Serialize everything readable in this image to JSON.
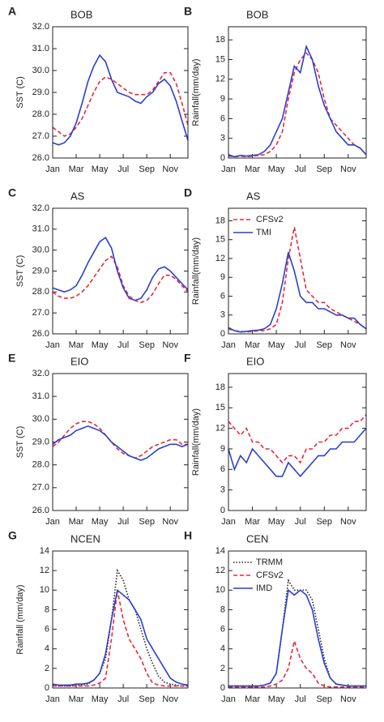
{
  "chart_data": [
    {
      "type": "line",
      "label": "A",
      "title": "BOB",
      "ylabel": "SST (C)",
      "categories": [
        "Jan",
        null,
        null,
        null,
        "Mar",
        null,
        null,
        null,
        "May",
        null,
        null,
        null,
        "Jul",
        null,
        null,
        null,
        "Sep",
        null,
        null,
        null,
        "Nov",
        null,
        null,
        null
      ],
      "ylim": [
        26,
        32
      ],
      "yticks": [
        {
          "value": 26,
          "label": "26.0"
        },
        {
          "value": 27,
          "label": "27.0"
        },
        {
          "value": 28,
          "label": "28.0"
        },
        {
          "value": 29,
          "label": "29.0"
        },
        {
          "value": 30,
          "label": "30.0"
        },
        {
          "value": 31,
          "label": "31.0"
        },
        {
          "value": 32,
          "label": "32.0"
        }
      ],
      "series": [
        {
          "color": "#e8283c",
          "style": "dashed",
          "values": [
            27.4,
            27.2,
            27.0,
            27.1,
            27.4,
            27.8,
            28.4,
            29.0,
            29.5,
            29.7,
            29.6,
            29.4,
            29.2,
            29.0,
            28.9,
            28.9,
            28.9,
            29.1,
            29.5,
            29.9,
            29.9,
            29.4,
            28.5,
            27.5
          ]
        },
        {
          "color": "#2c3fd0",
          "style": "solid",
          "values": [
            26.7,
            26.6,
            26.7,
            27.0,
            27.6,
            28.5,
            29.5,
            30.2,
            30.7,
            30.4,
            29.6,
            29.0,
            28.9,
            28.8,
            28.6,
            28.5,
            28.8,
            29.0,
            29.4,
            29.6,
            29.3,
            28.6,
            27.7,
            26.8
          ]
        }
      ]
    },
    {
      "type": "line",
      "label": "B",
      "title": "BOB",
      "ylabel": "Rainfall(mm/day)",
      "categories": [
        "Jan",
        null,
        null,
        null,
        "Mar",
        null,
        null,
        null,
        "May",
        null,
        null,
        null,
        "Jul",
        null,
        null,
        null,
        "Sep",
        null,
        null,
        null,
        "Nov",
        null,
        null,
        null
      ],
      "ylim": [
        0,
        20
      ],
      "yticks": [
        0,
        3,
        6,
        9,
        12,
        15,
        18
      ],
      "series": [
        {
          "color": "#e8283c",
          "style": "dashed",
          "values": [
            0.3,
            0.2,
            0.3,
            0.2,
            0.3,
            0.4,
            0.5,
            1,
            2,
            4,
            9,
            13,
            15,
            16,
            15,
            13,
            9,
            6,
            5,
            4,
            3,
            2,
            1.5,
            0.5
          ]
        },
        {
          "color": "#2c3fd0",
          "style": "solid",
          "values": [
            0.5,
            0.2,
            0.4,
            0.3,
            0.4,
            0.5,
            1,
            2,
            4,
            6,
            10,
            14,
            13,
            17,
            15,
            11,
            8,
            6,
            4,
            3,
            2,
            2,
            1.5,
            0.5
          ]
        }
      ]
    },
    {
      "type": "line",
      "label": "C",
      "title": "AS",
      "ylabel": "SST (C)",
      "categories": [
        "Jan",
        null,
        null,
        null,
        "Mar",
        null,
        null,
        null,
        "May",
        null,
        null,
        null,
        "Jul",
        null,
        null,
        null,
        "Sep",
        null,
        null,
        null,
        "Nov",
        null,
        null,
        null
      ],
      "ylim": [
        26,
        32
      ],
      "yticks": [
        {
          "value": 26,
          "label": "26.0"
        },
        {
          "value": 27,
          "label": "27.0"
        },
        {
          "value": 28,
          "label": "28.0"
        },
        {
          "value": 29,
          "label": "29.0"
        },
        {
          "value": 30,
          "label": "30.0"
        },
        {
          "value": 31,
          "label": "31.0"
        },
        {
          "value": 32,
          "label": "32.0"
        }
      ],
      "series": [
        {
          "color": "#e8283c",
          "style": "dashed",
          "values": [
            28.0,
            27.8,
            27.7,
            27.7,
            27.8,
            28.0,
            28.3,
            28.7,
            29.1,
            29.5,
            29.7,
            29.2,
            28.3,
            27.8,
            27.6,
            27.5,
            27.6,
            27.9,
            28.4,
            28.8,
            28.8,
            28.6,
            28.3,
            28.0
          ]
        },
        {
          "color": "#2c3fd0",
          "style": "solid",
          "values": [
            28.2,
            28.1,
            28.0,
            28.1,
            28.3,
            28.8,
            29.4,
            29.9,
            30.4,
            30.6,
            30.1,
            29.0,
            28.2,
            27.7,
            27.6,
            27.7,
            28.1,
            28.7,
            29.1,
            29.2,
            29.0,
            28.7,
            28.4,
            28.1
          ]
        }
      ]
    },
    {
      "type": "line",
      "label": "D",
      "title": "AS",
      "ylabel": "Rainfall(mm/day)",
      "legend": "upper left",
      "categories": [
        "Jan",
        null,
        null,
        null,
        "Mar",
        null,
        null,
        null,
        "May",
        null,
        null,
        null,
        "Jul",
        null,
        null,
        null,
        "Sep",
        null,
        null,
        null,
        "Nov",
        null,
        null,
        null
      ],
      "ylim": [
        0,
        20
      ],
      "yticks": [
        0,
        3,
        6,
        9,
        12,
        15,
        18
      ],
      "series": [
        {
          "name": "CFSv2",
          "color": "#e8283c",
          "style": "dashed",
          "values": [
            0.8,
            0.5,
            0.4,
            0.3,
            0.4,
            0.5,
            0.5,
            0.8,
            1.5,
            5,
            12,
            17,
            12,
            7,
            6,
            5,
            5,
            4,
            3.5,
            3,
            2.5,
            2,
            1.5,
            0.8
          ]
        },
        {
          "name": "TMI",
          "color": "#2c3fd0",
          "style": "solid",
          "values": [
            1.0,
            0.5,
            0.3,
            0.4,
            0.5,
            0.6,
            0.8,
            1.5,
            4,
            8,
            13,
            10,
            6,
            5,
            5,
            4,
            4,
            3.5,
            3,
            3,
            2.5,
            2.5,
            1.5,
            0.8
          ]
        }
      ]
    },
    {
      "type": "line",
      "label": "E",
      "title": "EIO",
      "ylabel": "SST (C)",
      "categories": [
        "Jan",
        null,
        null,
        null,
        "Mar",
        null,
        null,
        null,
        "May",
        null,
        null,
        null,
        "Jul",
        null,
        null,
        null,
        "Sep",
        null,
        null,
        null,
        "Nov",
        null,
        null,
        null
      ],
      "ylim": [
        26,
        32
      ],
      "yticks": [
        {
          "value": 26,
          "label": "26.0"
        },
        {
          "value": 27,
          "label": "27.0"
        },
        {
          "value": 28,
          "label": "28.0"
        },
        {
          "value": 29,
          "label": "29.0"
        },
        {
          "value": 30,
          "label": "30.0"
        },
        {
          "value": 31,
          "label": "31.0"
        },
        {
          "value": 32,
          "label": "32.0"
        }
      ],
      "series": [
        {
          "color": "#e8283c",
          "style": "dashed",
          "values": [
            28.8,
            29.0,
            29.3,
            29.6,
            29.8,
            29.9,
            29.9,
            29.8,
            29.6,
            29.3,
            29.0,
            28.7,
            28.5,
            28.4,
            28.3,
            28.4,
            28.6,
            28.8,
            28.9,
            29.0,
            29.1,
            29.1,
            28.9,
            28.9
          ]
        },
        {
          "color": "#2c3fd0",
          "style": "solid",
          "values": [
            28.9,
            29.1,
            29.2,
            29.3,
            29.5,
            29.6,
            29.7,
            29.6,
            29.5,
            29.3,
            29.0,
            28.8,
            28.6,
            28.4,
            28.3,
            28.2,
            28.3,
            28.5,
            28.7,
            28.8,
            28.9,
            28.9,
            28.8,
            28.9
          ]
        }
      ]
    },
    {
      "type": "line",
      "label": "F",
      "title": "EIO",
      "ylabel": "Rainfall(mm/day)",
      "categories": [
        "Jan",
        null,
        null,
        null,
        "Mar",
        null,
        null,
        null,
        "May",
        null,
        null,
        null,
        "Jul",
        null,
        null,
        null,
        "Sep",
        null,
        null,
        null,
        "Nov",
        null,
        null,
        null
      ],
      "ylim": [
        0,
        20
      ],
      "yticks": [
        0,
        3,
        6,
        9,
        12,
        15,
        18
      ],
      "series": [
        {
          "color": "#e8283c",
          "style": "dashed",
          "values": [
            13,
            12,
            11,
            12,
            10,
            10,
            9,
            9,
            8,
            7,
            8,
            8,
            7,
            9,
            9,
            10,
            10,
            11,
            11,
            12,
            12,
            13,
            13,
            14
          ]
        },
        {
          "color": "#2c3fd0",
          "style": "solid",
          "values": [
            9,
            6,
            8,
            7,
            9,
            8,
            7,
            6,
            5,
            5,
            7,
            6,
            5,
            6,
            7,
            8,
            8,
            9,
            9,
            10,
            10,
            10,
            11,
            12
          ]
        }
      ]
    },
    {
      "type": "line",
      "label": "G",
      "title": "NCEN",
      "ylabel": "Rainfall (mm/day)",
      "categories": [
        "Jan",
        null,
        null,
        null,
        "Mar",
        null,
        null,
        null,
        "May",
        null,
        null,
        null,
        "Jul",
        null,
        null,
        null,
        "Sep",
        null,
        null,
        null,
        "Nov",
        null,
        null,
        null
      ],
      "ylim": [
        0,
        14
      ],
      "yticks": [
        0,
        2,
        4,
        6,
        8,
        10,
        12,
        14
      ],
      "series": [
        {
          "color": "#222222",
          "style": "dotted",
          "values": [
            0.3,
            0.2,
            0.2,
            0.2,
            0.3,
            0.3,
            0.4,
            0.8,
            1.5,
            3,
            7,
            12,
            11,
            9,
            8,
            6,
            4,
            2.5,
            1.2,
            0.6,
            0.4,
            0.3,
            0.2,
            0.2
          ]
        },
        {
          "color": "#e8283c",
          "style": "dashed",
          "values": [
            0.2,
            0.2,
            0.2,
            0.2,
            0.2,
            0.2,
            0.2,
            0.3,
            0.5,
            1,
            5,
            10,
            7,
            5,
            4,
            3,
            1.5,
            0.5,
            0.3,
            0.2,
            0.2,
            0.2,
            0.2,
            0.2
          ]
        },
        {
          "color": "#2c3fd0",
          "style": "solid",
          "values": [
            0.4,
            0.3,
            0.3,
            0.3,
            0.4,
            0.4,
            0.5,
            0.8,
            1.5,
            3.5,
            7,
            10,
            9.5,
            9,
            8,
            7,
            5,
            4,
            3,
            2,
            1,
            0.6,
            0.4,
            0.3
          ]
        }
      ]
    },
    {
      "type": "line",
      "label": "H",
      "title": "CEN",
      "legend": "upper left",
      "categories": [
        "Jan",
        null,
        null,
        null,
        "Mar",
        null,
        null,
        null,
        "May",
        null,
        null,
        null,
        "Jul",
        null,
        null,
        null,
        "Sep",
        null,
        null,
        null,
        "Nov",
        null,
        null,
        null
      ],
      "ylim": [
        0,
        14
      ],
      "yticks": [
        0,
        2,
        4,
        6,
        8,
        10,
        12,
        14
      ],
      "series": [
        {
          "name": "TRMM",
          "color": "#222222",
          "style": "dotted",
          "values": [
            0.2,
            0.2,
            0.2,
            0.2,
            0.2,
            0.2,
            0.3,
            0.5,
            1.5,
            6,
            11,
            10,
            10,
            10,
            9,
            6,
            3,
            1,
            0.4,
            0.3,
            0.2,
            0.2,
            0.2,
            0.2
          ]
        },
        {
          "name": "CFSv2",
          "color": "#e8283c",
          "style": "dashed",
          "values": [
            0.1,
            0.1,
            0.1,
            0.1,
            0.1,
            0.1,
            0.1,
            0.2,
            0.4,
            0.8,
            2,
            4.8,
            3,
            2,
            1.5,
            0.5,
            0.2,
            0.1,
            0.1,
            0.1,
            0.1,
            0.1,
            0.1,
            0.1
          ]
        },
        {
          "name": "IMD",
          "color": "#2c3fd0",
          "style": "solid",
          "values": [
            0.2,
            0.2,
            0.2,
            0.2,
            0.2,
            0.2,
            0.3,
            0.5,
            1.5,
            6,
            10,
            9.5,
            10,
            9.5,
            8,
            5,
            2.5,
            1,
            0.4,
            0.3,
            0.2,
            0.2,
            0.2,
            0.2
          ]
        }
      ]
    }
  ]
}
